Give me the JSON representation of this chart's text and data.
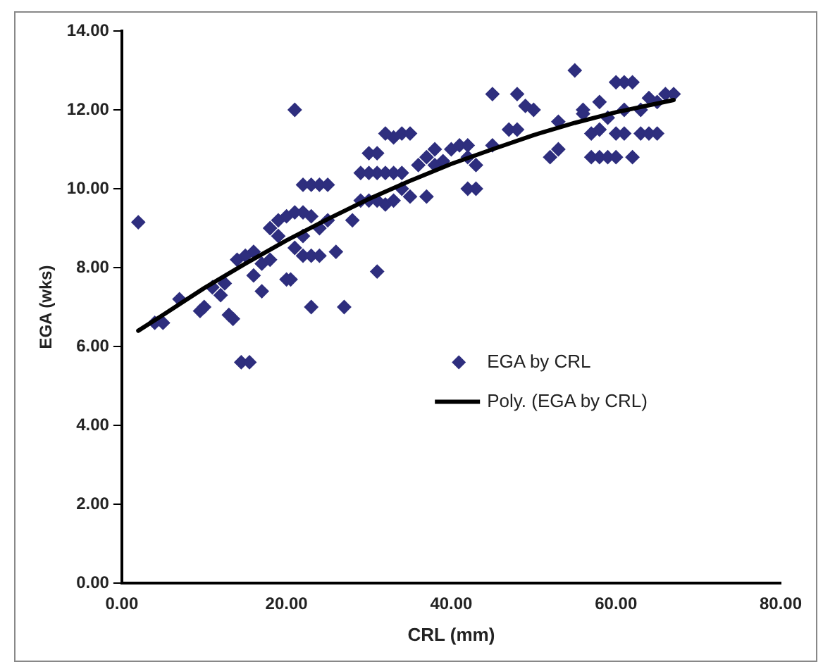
{
  "chart_data": {
    "type": "scatter",
    "xlabel": "CRL (mm)",
    "ylabel": "EGA (wks)",
    "xlim": [
      0,
      80
    ],
    "xticks": [
      {
        "value": 0,
        "label": "0.00"
      },
      {
        "value": 20,
        "label": "20.00"
      },
      {
        "value": 40,
        "label": "40.00"
      },
      {
        "value": 60,
        "label": "60.00"
      },
      {
        "value": 80,
        "label": "80.00"
      }
    ],
    "ylim": [
      0,
      14
    ],
    "yticks": [
      {
        "value": 0,
        "label": "0.00"
      },
      {
        "value": 2,
        "label": "2.00"
      },
      {
        "value": 4,
        "label": "4.00"
      },
      {
        "value": 6,
        "label": "6.00"
      },
      {
        "value": 8,
        "label": "8.00"
      },
      {
        "value": 10,
        "label": "10.00"
      },
      {
        "value": 12,
        "label": "12.00"
      },
      {
        "value": 14,
        "label": "14.00"
      }
    ],
    "grid": false,
    "legend": "center right",
    "series": [
      {
        "name": "EGA by CRL",
        "type": "scatter",
        "marker": "diamond",
        "color": "#2e2e7e",
        "x": [
          2,
          4,
          5,
          7,
          9.5,
          10,
          11,
          12,
          12.5,
          13,
          13.5,
          14,
          15,
          16,
          17,
          18,
          14.5,
          15.5,
          16,
          17,
          18,
          19,
          19,
          20,
          20.5,
          21,
          20,
          21,
          22,
          23,
          21,
          22,
          23,
          24,
          22,
          22,
          23,
          24,
          25,
          23,
          27,
          24,
          25,
          26,
          28,
          29,
          29,
          30,
          31,
          30,
          31,
          32,
          33,
          34,
          35,
          30,
          31,
          32,
          33,
          34,
          32,
          33,
          34,
          31,
          35,
          36,
          37,
          38,
          39,
          38,
          37,
          40,
          41,
          42,
          42,
          42,
          43,
          43,
          45,
          45,
          47,
          48,
          49,
          50,
          48,
          52,
          53,
          53,
          55,
          56,
          56,
          57,
          58,
          58,
          59,
          57,
          58,
          60,
          61,
          62,
          60,
          61,
          63,
          64,
          65,
          59,
          60,
          62,
          61,
          63,
          64,
          66,
          67,
          65
        ],
        "values": [
          9.15,
          6.6,
          6.6,
          7.2,
          6.9,
          7.0,
          7.5,
          7.3,
          7.6,
          6.8,
          6.7,
          8.2,
          8.3,
          8.4,
          8.1,
          8.2,
          5.6,
          5.6,
          7.8,
          7.4,
          9.0,
          9.2,
          8.8,
          7.7,
          7.7,
          12.0,
          9.3,
          9.4,
          9.4,
          9.3,
          8.5,
          8.3,
          8.3,
          8.3,
          8.8,
          10.1,
          10.1,
          10.1,
          10.1,
          7.0,
          7.0,
          9.0,
          9.2,
          8.4,
          9.2,
          9.7,
          10.4,
          10.9,
          10.4,
          9.7,
          9.7,
          11.4,
          11.3,
          11.4,
          11.4,
          10.4,
          10.9,
          10.4,
          10.4,
          10.4,
          9.6,
          9.7,
          10.0,
          7.9,
          9.8,
          10.6,
          10.8,
          10.6,
          10.7,
          11.0,
          9.8,
          11.0,
          11.1,
          11.1,
          10.8,
          10.0,
          10.0,
          10.6,
          11.1,
          12.4,
          11.5,
          12.4,
          12.1,
          12.0,
          11.5,
          10.8,
          11.0,
          11.7,
          13.0,
          12.0,
          11.9,
          11.4,
          11.5,
          12.2,
          11.8,
          10.8,
          10.8,
          12.7,
          12.7,
          12.7,
          11.4,
          11.4,
          11.4,
          11.4,
          11.4,
          10.8,
          10.8,
          10.8,
          12.0,
          12.0,
          12.3,
          12.4,
          12.4,
          12.2
        ]
      },
      {
        "name": "Poly. (EGA by CRL)",
        "type": "line",
        "marker": "none",
        "line_style": "solid",
        "color": "#000000",
        "x": [
          2,
          5,
          10,
          15,
          20,
          25,
          30,
          35,
          40,
          45,
          50,
          55,
          60,
          65,
          67
        ],
        "values": [
          6.4,
          6.8,
          7.48,
          8.1,
          8.69,
          9.23,
          9.74,
          10.2,
          10.63,
          11.0,
          11.36,
          11.67,
          11.94,
          12.16,
          12.25
        ]
      }
    ]
  }
}
